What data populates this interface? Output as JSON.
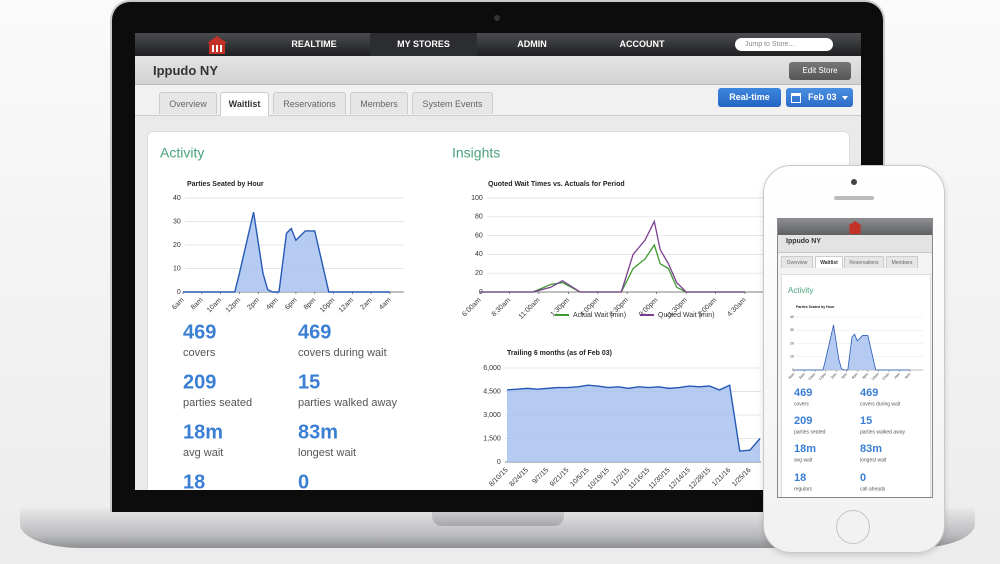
{
  "nav": {
    "items": [
      "REALTIME",
      "MY STORES",
      "ADMIN",
      "ACCOUNT"
    ],
    "active": 1,
    "search_placeholder": "Jump to Store..."
  },
  "store": {
    "name": "Ippudo NY",
    "edit_button": "Edit Store"
  },
  "tabs": {
    "items": [
      "Overview",
      "Waitlist",
      "Reservations",
      "Members",
      "System Events"
    ],
    "active": 1
  },
  "controls": {
    "realtime": "Real-time",
    "date": "Feb 03"
  },
  "activity": {
    "heading": "Activity",
    "chart": {
      "type": "area",
      "title": "Parties Seated by Hour",
      "color": "#2659b5",
      "fill_color": "#a9c2ee",
      "x": [
        0,
        1,
        2,
        3,
        4,
        5,
        5.5,
        6,
        7.5,
        8.5,
        9,
        9.5,
        10.2,
        11,
        11.5,
        12,
        13,
        14,
        15.5,
        16,
        22
      ],
      "values": [
        0,
        0,
        0,
        0,
        0,
        0,
        0,
        8,
        34,
        8,
        1,
        0,
        0,
        25,
        27,
        22,
        26,
        26,
        0,
        0,
        0
      ],
      "xlim": [
        0,
        22
      ],
      "xticks": [
        {
          "value": 0,
          "label": "6am"
        },
        {
          "value": 2,
          "label": "8am"
        },
        {
          "value": 4,
          "label": "10am"
        },
        {
          "value": 6,
          "label": "12pm"
        },
        {
          "value": 8,
          "label": "2pm"
        },
        {
          "value": 10,
          "label": "4pm"
        },
        {
          "value": 12,
          "label": "6pm"
        },
        {
          "value": 14,
          "label": "8pm"
        },
        {
          "value": 16,
          "label": "10pm"
        },
        {
          "value": 18,
          "label": "12am"
        },
        {
          "value": 20,
          "label": "2am"
        },
        {
          "value": 22,
          "label": "4am"
        }
      ],
      "ylim": [
        0,
        40
      ],
      "yticks": [
        0,
        10,
        20,
        30,
        40
      ],
      "grid": true
    },
    "stats": [
      {
        "value": "469",
        "label": "covers"
      },
      {
        "value": "469",
        "label": "covers during wait"
      },
      {
        "value": "209",
        "label": "parties seated"
      },
      {
        "value": "15",
        "label": "parties walked away"
      },
      {
        "value": "18m",
        "label": "avg wait"
      },
      {
        "value": "83m",
        "label": "longest wait"
      },
      {
        "value": "18",
        "label": "regulars"
      },
      {
        "value": "0",
        "label": "call aheads"
      }
    ]
  },
  "insights": {
    "heading": "Insights",
    "charts": [
      {
        "type": "line",
        "title": "Quoted Wait Times vs. Actuals for Period",
        "legend": "bottom",
        "x": [
          0,
          4.5,
          6,
          7,
          8.5,
          12,
          13,
          14,
          14.8,
          15.3,
          16,
          16.7,
          17.5,
          22.5
        ],
        "series": [
          {
            "name": "Actual Wait (min)",
            "color": "#3f9a2f",
            "values": [
              0,
              0,
              8,
              10,
              0,
              0,
              25,
              35,
              50,
              30,
              25,
              5,
              0,
              0
            ]
          },
          {
            "name": "Quoted Wait (min)",
            "color": "#7b3f91",
            "values": [
              0,
              0,
              5,
              12,
              0,
              0,
              40,
              55,
              75,
              45,
              30,
              10,
              0,
              0
            ]
          }
        ],
        "xlim": [
          0,
          22.5
        ],
        "xticks": [
          {
            "value": 0,
            "label": "6:00am"
          },
          {
            "value": 2.5,
            "label": "8:30am"
          },
          {
            "value": 5,
            "label": "11:00am"
          },
          {
            "value": 7.5,
            "label": "1:30pm"
          },
          {
            "value": 10,
            "label": "4:00pm"
          },
          {
            "value": 12.5,
            "label": "6:30pm"
          },
          {
            "value": 15,
            "label": "9:00pm"
          },
          {
            "value": 17.5,
            "label": "11:30pm"
          },
          {
            "value": 20,
            "label": "2:00am"
          },
          {
            "value": 22.5,
            "label": "4:30am"
          }
        ],
        "ylim": [
          0,
          100
        ],
        "yticks": [
          0,
          20,
          40,
          60,
          80,
          100
        ],
        "grid": true
      },
      {
        "type": "area",
        "title": "Trailing 6 months (as of Feb 03)",
        "color": "#2659b5",
        "fill_color": "#a9c2ee",
        "categories": [
          "8/10/15",
          null,
          "8/24/15",
          null,
          "9/7/15",
          null,
          "9/21/15",
          null,
          "10/5/15",
          null,
          "10/19/15",
          null,
          "11/2/15",
          null,
          "11/16/15",
          null,
          "11/30/15",
          null,
          "12/14/15",
          null,
          "12/28/15",
          null,
          "1/11/16",
          null,
          "1/25/16",
          null
        ],
        "values": [
          4600,
          4650,
          4700,
          4650,
          4700,
          4750,
          4750,
          4800,
          4900,
          4850,
          4750,
          4800,
          4700,
          4800,
          4750,
          4800,
          4700,
          4750,
          4850,
          4800,
          4850,
          4600,
          4900,
          700,
          750,
          1500
        ],
        "ylim": [
          0,
          6000
        ],
        "yticks": [
          0,
          {
            "value": 1500,
            "label": "1,500"
          },
          {
            "value": 3000,
            "label": "3,000"
          },
          {
            "value": 4500,
            "label": "4,500"
          },
          {
            "value": 6000,
            "label": "6,000"
          }
        ],
        "grid": true
      }
    ]
  }
}
